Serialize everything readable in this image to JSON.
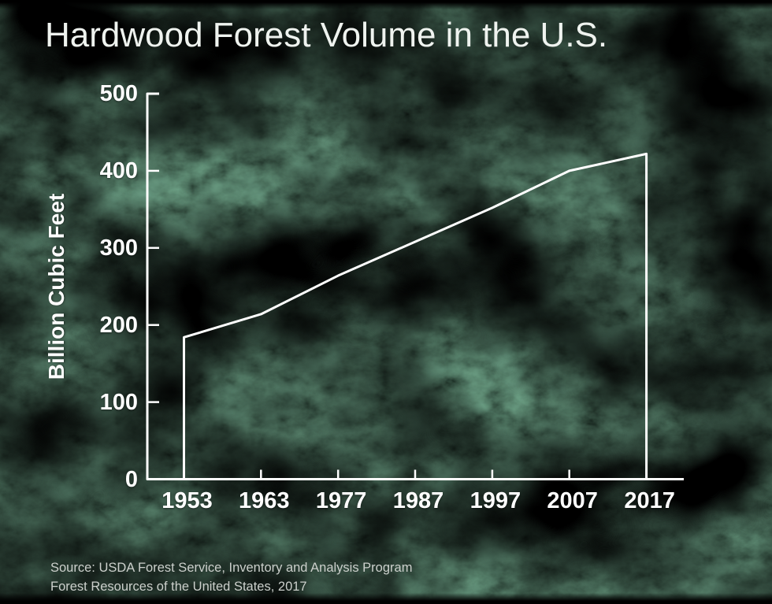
{
  "title": "Hardwood Forest Volume in the U.S.",
  "source": {
    "line1": "Source: USDA Forest Service, Inventory and Analysis Program",
    "line2": "Forest Resources of the United States, 2017"
  },
  "colors": {
    "background_base": "#0b1710",
    "foliage_green_mid": "#255239",
    "foliage_green_dark": "#06130c",
    "line": "#ffffff",
    "axis": "#ffffff",
    "title_text": "#eff3ef",
    "tick_text": "#ffffff",
    "source_text": "#ccd0cc"
  },
  "chart_data": {
    "type": "line",
    "title": "Hardwood Forest Volume in the U.S.",
    "xlabel": "",
    "ylabel": "Billion Cubic Feet",
    "categories": [
      "1953",
      "1963",
      "1977",
      "1987",
      "1997",
      "2007",
      "2017"
    ],
    "values": [
      184,
      214,
      264,
      308,
      352,
      400,
      422
    ],
    "units": "billion cubic feet",
    "ylim": [
      0,
      500
    ],
    "y_ticks": [
      0,
      100,
      200,
      300,
      400,
      500
    ],
    "y_tick_labels": [
      "500",
      "400",
      "300",
      "200",
      "100",
      "0"
    ],
    "grid": false,
    "legend": "none",
    "line_color": "#ffffff",
    "endpoints_drop_to_baseline": true
  }
}
